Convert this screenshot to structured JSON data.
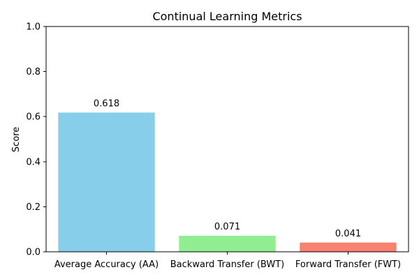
{
  "chart_data": {
    "type": "bar",
    "title": "Continual Learning Metrics",
    "xlabel": "",
    "ylabel": "Score",
    "ylim": [
      0,
      1.0
    ],
    "yticks": [
      "0.0",
      "0.2",
      "0.4",
      "0.6",
      "0.8",
      "1.0"
    ],
    "categories": [
      "Average Accuracy (AA)",
      "Backward Transfer (BWT)",
      "Forward Transfer (FWT)"
    ],
    "values": [
      0.618,
      0.071,
      0.041
    ],
    "data_labels": [
      "0.618",
      "0.071",
      "0.041"
    ],
    "colors": [
      "#87ceeb",
      "#90ee90",
      "#fa8072"
    ],
    "grid": false,
    "legend": "none"
  }
}
